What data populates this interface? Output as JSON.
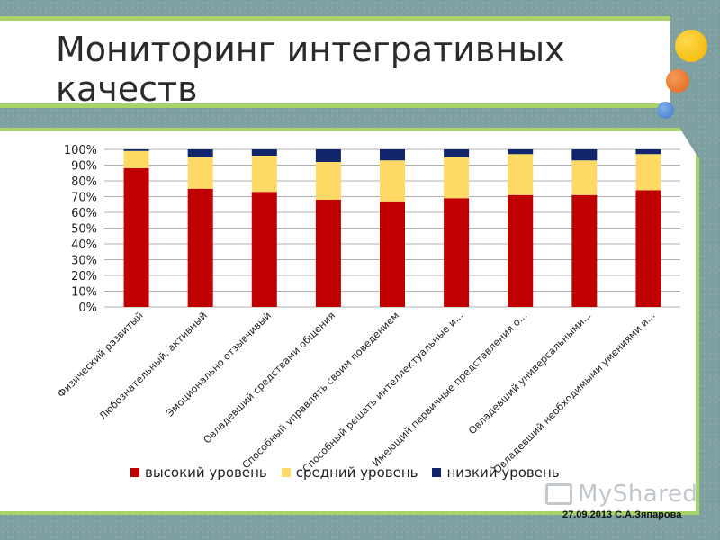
{
  "slide": {
    "title": "Мониторинг интегративных качеств",
    "footer": "27.09.2013 С.А.Зяпарова",
    "watermark": "MyShared"
  },
  "colors": {
    "high": "#c00000",
    "mid": "#ffd966",
    "low": "#10256a",
    "accent": "#a8d26a"
  },
  "chart_data": {
    "type": "bar",
    "stacked": true,
    "percent": true,
    "categories": [
      "Физический развитый",
      "Любознательный, активный",
      "Эмоционально отзывчивый",
      "Овладевший средствами общения",
      "Способный управлять своим поведением",
      "Способный решать интеллектуальные и...",
      "Имеющий первичные представления о...",
      "Овладевший универсальными...",
      "Овладевший необходимыми умениями и..."
    ],
    "series": [
      {
        "name": "высокий уровень",
        "values": [
          88,
          75,
          73,
          68,
          67,
          69,
          71,
          71,
          74
        ]
      },
      {
        "name": "средний уровень",
        "values": [
          11,
          20,
          23,
          24,
          26,
          26,
          26,
          22,
          23
        ]
      },
      {
        "name": "низкий уровень",
        "values": [
          1,
          5,
          4,
          8,
          7,
          5,
          3,
          7,
          3
        ]
      }
    ],
    "yticks": [
      "0%",
      "10%",
      "20%",
      "30%",
      "40%",
      "50%",
      "60%",
      "70%",
      "80%",
      "90%",
      "100%"
    ],
    "ylim": [
      0,
      100
    ],
    "grid": true,
    "legend_position": "bottom"
  }
}
